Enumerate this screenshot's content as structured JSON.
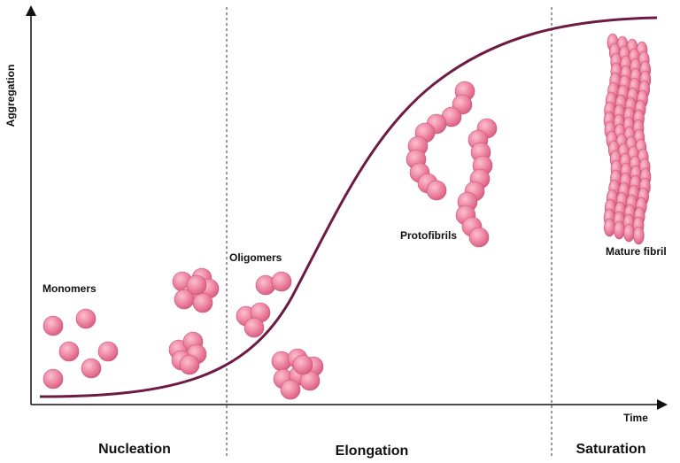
{
  "axes": {
    "y_label": "Aggregation",
    "x_label": "Time"
  },
  "annotations": {
    "monomers": "Monomers",
    "oligomers": "Oligomers",
    "protofibrils": "Protofibrils",
    "mature_fibril": "Mature fibril"
  },
  "phases": [
    "Nucleation",
    "Elongation",
    "Saturation"
  ]
}
